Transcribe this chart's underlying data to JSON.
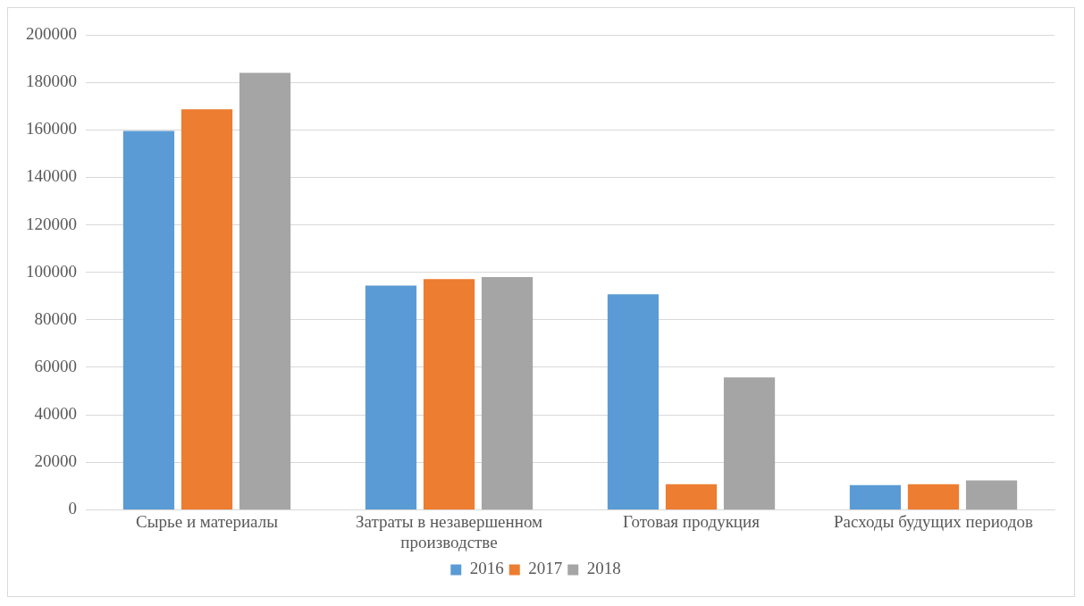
{
  "chart_data": {
    "type": "bar",
    "categories": [
      "Сырье и материалы",
      "Затраты в незавершенном производстве",
      "Готовая продукция",
      "Расходы будущих периодов"
    ],
    "series": [
      {
        "name": "2016",
        "color": "#5b9bd5",
        "values": [
          159500,
          94400,
          90800,
          10400
        ]
      },
      {
        "name": "2017",
        "color": "#ed7d31",
        "values": [
          168700,
          97200,
          10800,
          10800
        ]
      },
      {
        "name": "2018",
        "color": "#a5a5a5",
        "values": [
          184000,
          98000,
          55800,
          12400
        ]
      }
    ],
    "ylim": [
      0,
      200000
    ],
    "yticks": [
      0,
      20000,
      40000,
      60000,
      80000,
      100000,
      120000,
      140000,
      160000,
      180000,
      200000
    ],
    "grid": "y",
    "legend": "bottom"
  }
}
